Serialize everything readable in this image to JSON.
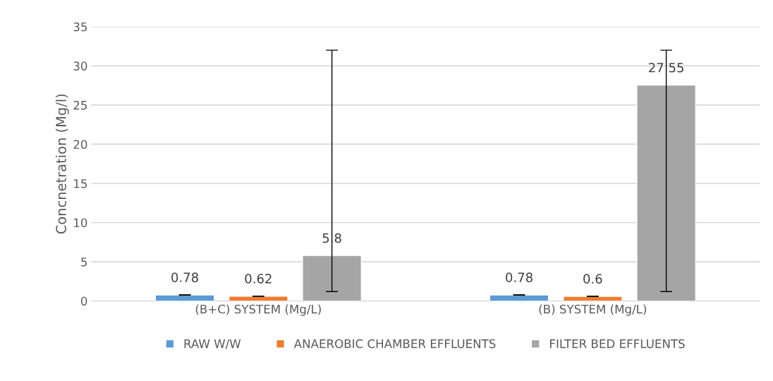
{
  "chart_data": {
    "type": "bar",
    "ylabel": "Concnetration (Mg/l)",
    "categories": [
      "(B+C) SYSTEM (Mg/L)",
      "(B) SYSTEM (Mg/L)"
    ],
    "series": [
      {
        "name": "RAW W/W",
        "color": "#5b9bd5",
        "values": [
          0.78,
          0.78
        ],
        "errors": [
          0,
          0
        ]
      },
      {
        "name": "ANAEROBIC CHAMBER EFFLUENTS",
        "color": "#ed7d31",
        "values": [
          0.62,
          0.6
        ],
        "errors": [
          0,
          0
        ]
      },
      {
        "name": "FILTER BED EFFLUENTS",
        "color": "#a5a5a5",
        "values": [
          5.8,
          27.55
        ],
        "errors": [
          [
            1.2,
            32
          ],
          [
            1.2,
            32
          ]
        ]
      }
    ],
    "ylim": [
      0,
      35
    ],
    "yticks": [
      0,
      5,
      10,
      15,
      20,
      25,
      30,
      35
    ],
    "grid": "y",
    "legend": "bottom",
    "data_labels": true
  }
}
